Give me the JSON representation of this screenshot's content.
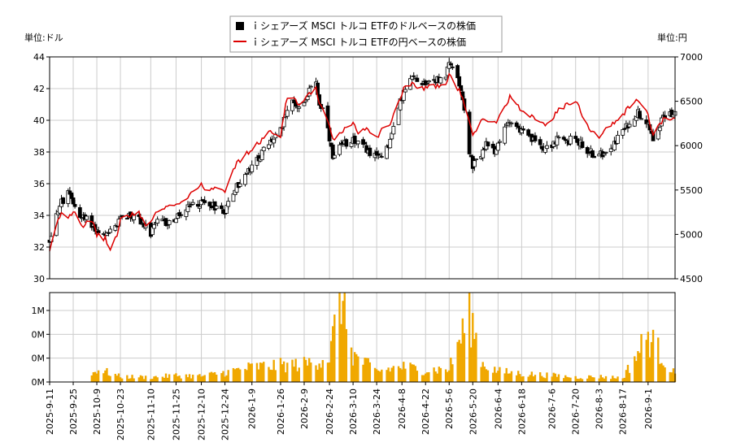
{
  "chart_data": [
    {
      "type": "candlestick",
      "legend_placement": "top-center",
      "left_unit": "単位:ドル",
      "right_unit": "単位:円",
      "legend": [
        {
          "label": "ｉシェアーズ MSCI トルコ ETFのドルベースの株価",
          "color": "#000000"
        },
        {
          "label": "ｉシェアーズ MSCI トルコ ETFの円ベースの株価",
          "color": "#dd0000"
        }
      ],
      "grid": true,
      "ylim_left": [
        30,
        44
      ],
      "ylim_right": [
        4500,
        7000
      ],
      "yticks_left": [
        30,
        32,
        34,
        36,
        38,
        40,
        42,
        44
      ],
      "yticks_right": [
        4500,
        5000,
        5500,
        6000,
        6500,
        7000
      ],
      "x_start": "2025-09-11",
      "x_end": "2026-09-17",
      "x_ticks": [
        "2025-9-11",
        "2025-9-25",
        "2025-10-9",
        "2025-10-23",
        "2025-11-10",
        "2025-11-25",
        "2025-12-10",
        "2025-12-24",
        "2026-1-9",
        "2026-1-26",
        "2026-2-9",
        "2026-2-24",
        "2026-3-10",
        "2026-3-24",
        "2026-4-8",
        "2026-4-22",
        "2026-5-6",
        "2026-5-20",
        "2026-6-4",
        "2026-6-18",
        "2026-7-6",
        "2026-7-20",
        "2026-8-3",
        "2026-8-17",
        "2026-9-1"
      ],
      "price_anchors": [
        [
          "2025-9-11",
          32.4
        ],
        [
          "2025-9-15",
          34.2
        ],
        [
          "2025-9-18",
          34.8
        ],
        [
          "2025-9-22",
          35.3
        ],
        [
          "2025-9-26",
          34.6
        ],
        [
          "2025-9-30",
          33.9
        ],
        [
          "2025-10-6",
          33.5
        ],
        [
          "2025-10-9",
          33.0
        ],
        [
          "2025-10-14",
          32.6
        ],
        [
          "2025-10-17",
          32.9
        ],
        [
          "2025-10-22",
          33.5
        ],
        [
          "2025-10-23",
          34.0
        ],
        [
          "2025-10-28",
          34.0
        ],
        [
          "2025-11-3",
          33.8
        ],
        [
          "2025-11-7",
          33.2
        ],
        [
          "2025-11-10",
          32.8
        ],
        [
          "2025-11-14",
          33.6
        ],
        [
          "2025-11-20",
          33.5
        ],
        [
          "2025-11-25",
          33.8
        ],
        [
          "2025-12-1",
          34.3
        ],
        [
          "2025-12-5",
          34.7
        ],
        [
          "2025-12-10",
          34.8
        ],
        [
          "2025-12-15",
          34.8
        ],
        [
          "2025-12-19",
          34.5
        ],
        [
          "2025-12-24",
          34.3
        ],
        [
          "2025-12-29",
          35.5
        ],
        [
          "2026-1-5",
          36.5
        ],
        [
          "2026-1-9",
          37.0
        ],
        [
          "2026-1-14",
          37.8
        ],
        [
          "2026-1-19",
          38.5
        ],
        [
          "2026-1-26",
          39.3
        ],
        [
          "2026-1-29",
          40.6
        ],
        [
          "2026-2-3",
          41.2
        ],
        [
          "2026-2-6",
          40.8
        ],
        [
          "2026-2-9",
          41.3
        ],
        [
          "2026-2-13",
          42.0
        ],
        [
          "2026-2-16",
          42.5
        ],
        [
          "2026-2-18",
          41.0
        ],
        [
          "2026-2-21",
          40.5
        ],
        [
          "2026-2-24",
          38.7
        ],
        [
          "2026-2-26",
          37.5
        ],
        [
          "2026-3-2",
          38.2
        ],
        [
          "2026-3-6",
          38.6
        ],
        [
          "2026-3-10",
          38.9
        ],
        [
          "2026-3-13",
          38.5
        ],
        [
          "2026-3-17",
          38.3
        ],
        [
          "2026-3-21",
          37.8
        ],
        [
          "2026-3-24",
          37.6
        ],
        [
          "2026-3-28",
          38.0
        ],
        [
          "2026-4-1",
          38.7
        ],
        [
          "2026-4-4",
          40.0
        ],
        [
          "2026-4-8",
          41.5
        ],
        [
          "2026-4-11",
          42.2
        ],
        [
          "2026-4-15",
          42.7
        ],
        [
          "2026-4-19",
          42.5
        ],
        [
          "2026-4-22",
          42.4
        ],
        [
          "2026-4-26",
          42.6
        ],
        [
          "2026-4-30",
          42.5
        ],
        [
          "2026-5-4",
          42.9
        ],
        [
          "2026-5-6",
          43.5
        ],
        [
          "2026-5-8",
          43.3
        ],
        [
          "2026-5-11",
          42.8
        ],
        [
          "2026-5-14",
          41.5
        ],
        [
          "2026-5-16",
          40.0
        ],
        [
          "2026-5-18",
          38.0
        ],
        [
          "2026-5-20",
          37.0
        ],
        [
          "2026-5-24",
          37.8
        ],
        [
          "2026-5-28",
          38.4
        ],
        [
          "2026-6-1",
          38.0
        ],
        [
          "2026-6-4",
          38.3
        ],
        [
          "2026-6-8",
          39.5
        ],
        [
          "2026-6-11",
          40.1
        ],
        [
          "2026-6-15",
          39.6
        ],
        [
          "2026-6-18",
          39.3
        ],
        [
          "2026-6-23",
          38.8
        ],
        [
          "2026-6-27",
          38.6
        ],
        [
          "2026-7-2",
          38.3
        ],
        [
          "2026-7-6",
          38.5
        ],
        [
          "2026-7-10",
          38.8
        ],
        [
          "2026-7-14",
          38.6
        ],
        [
          "2026-7-20",
          38.9
        ],
        [
          "2026-7-24",
          38.4
        ],
        [
          "2026-7-28",
          38.0
        ],
        [
          "2026-8-3",
          37.7
        ],
        [
          "2026-8-7",
          38.2
        ],
        [
          "2026-8-12",
          38.6
        ],
        [
          "2026-8-17",
          39.3
        ],
        [
          "2026-8-21",
          39.8
        ],
        [
          "2026-8-25",
          40.5
        ],
        [
          "2026-8-29",
          40.3
        ],
        [
          "2026-9-1",
          39.9
        ],
        [
          "2026-9-4",
          38.9
        ],
        [
          "2026-9-8",
          39.8
        ],
        [
          "2026-9-11",
          40.3
        ],
        [
          "2026-9-17",
          40.5
        ]
      ],
      "yen_anchors": [
        [
          "2025-9-11",
          4800
        ],
        [
          "2025-9-15",
          5100
        ],
        [
          "2025-9-18",
          5250
        ],
        [
          "2025-9-22",
          5200
        ],
        [
          "2025-9-26",
          5280
        ],
        [
          "2025-9-30",
          5100
        ],
        [
          "2025-10-6",
          5150
        ],
        [
          "2025-10-9",
          5000
        ],
        [
          "2025-10-14",
          4950
        ],
        [
          "2025-10-17",
          4820
        ],
        [
          "2025-10-22",
          5050
        ],
        [
          "2025-10-23",
          5200
        ],
        [
          "2025-10-28",
          5200
        ],
        [
          "2025-11-3",
          5250
        ],
        [
          "2025-11-7",
          5100
        ],
        [
          "2025-11-10",
          5150
        ],
        [
          "2025-11-14",
          5250
        ],
        [
          "2025-11-20",
          5300
        ],
        [
          "2025-11-25",
          5350
        ],
        [
          "2025-12-1",
          5400
        ],
        [
          "2025-12-5",
          5500
        ],
        [
          "2025-12-10",
          5550
        ],
        [
          "2025-12-15",
          5500
        ],
        [
          "2025-12-19",
          5550
        ],
        [
          "2025-12-24",
          5500
        ],
        [
          "2025-12-29",
          5750
        ],
        [
          "2026-1-5",
          5900
        ],
        [
          "2026-1-9",
          5950
        ],
        [
          "2026-1-14",
          6050
        ],
        [
          "2026-1-19",
          6150
        ],
        [
          "2026-1-26",
          6100
        ],
        [
          "2026-1-29",
          6500
        ],
        [
          "2026-2-3",
          6550
        ],
        [
          "2026-2-6",
          6450
        ],
        [
          "2026-2-9",
          6500
        ],
        [
          "2026-2-13",
          6600
        ],
        [
          "2026-2-16",
          6650
        ],
        [
          "2026-2-18",
          6450
        ],
        [
          "2026-2-21",
          6400
        ],
        [
          "2026-2-24",
          6200
        ],
        [
          "2026-2-26",
          6050
        ],
        [
          "2026-3-2",
          6150
        ],
        [
          "2026-3-6",
          6200
        ],
        [
          "2026-3-10",
          6250
        ],
        [
          "2026-3-13",
          6150
        ],
        [
          "2026-3-17",
          6200
        ],
        [
          "2026-3-21",
          6150
        ],
        [
          "2026-3-24",
          6100
        ],
        [
          "2026-3-28",
          6200
        ],
        [
          "2026-4-1",
          6250
        ],
        [
          "2026-4-4",
          6400
        ],
        [
          "2026-4-8",
          6600
        ],
        [
          "2026-4-11",
          6700
        ],
        [
          "2026-4-15",
          6700
        ],
        [
          "2026-4-19",
          6650
        ],
        [
          "2026-4-22",
          6650
        ],
        [
          "2026-4-26",
          6700
        ],
        [
          "2026-4-30",
          6650
        ],
        [
          "2026-5-4",
          6700
        ],
        [
          "2026-5-6",
          6800
        ],
        [
          "2026-5-8",
          6750
        ],
        [
          "2026-5-11",
          6650
        ],
        [
          "2026-5-14",
          6550
        ],
        [
          "2026-5-16",
          6400
        ],
        [
          "2026-5-18",
          6250
        ],
        [
          "2026-5-20",
          6100
        ],
        [
          "2026-5-24",
          6250
        ],
        [
          "2026-5-28",
          6300
        ],
        [
          "2026-6-1",
          6250
        ],
        [
          "2026-6-4",
          6300
        ],
        [
          "2026-6-8",
          6450
        ],
        [
          "2026-6-11",
          6550
        ],
        [
          "2026-6-15",
          6450
        ],
        [
          "2026-6-18",
          6400
        ],
        [
          "2026-6-23",
          6350
        ],
        [
          "2026-6-27",
          6300
        ],
        [
          "2026-7-2",
          6250
        ],
        [
          "2026-7-6",
          6300
        ],
        [
          "2026-7-10",
          6400
        ],
        [
          "2026-7-14",
          6450
        ],
        [
          "2026-7-20",
          6500
        ],
        [
          "2026-7-24",
          6350
        ],
        [
          "2026-7-28",
          6200
        ],
        [
          "2026-8-3",
          6100
        ],
        [
          "2026-8-7",
          6200
        ],
        [
          "2026-8-12",
          6250
        ],
        [
          "2026-8-17",
          6350
        ],
        [
          "2026-8-21",
          6450
        ],
        [
          "2026-8-25",
          6500
        ],
        [
          "2026-8-29",
          6450
        ],
        [
          "2026-9-1",
          6350
        ],
        [
          "2026-9-4",
          6100
        ],
        [
          "2026-9-8",
          6250
        ],
        [
          "2026-9-11",
          6300
        ],
        [
          "2026-9-17",
          6300
        ]
      ]
    },
    {
      "type": "bar",
      "ylim": [
        0,
        1500000
      ],
      "yticks": [
        0,
        400000,
        800000,
        1200000
      ],
      "ytick_labels": [
        "0M",
        "0M",
        "0M",
        "1M"
      ],
      "grid": true,
      "volume_anchors": [
        [
          "2025-9-11",
          0
        ],
        [
          "2025-10-3",
          0
        ],
        [
          "2025-10-6",
          120000
        ],
        [
          "2025-10-9",
          220000
        ],
        [
          "2025-10-23",
          90000
        ],
        [
          "2025-11-10",
          80000
        ],
        [
          "2025-11-25",
          110000
        ],
        [
          "2025-12-10",
          100000
        ],
        [
          "2025-12-24",
          160000
        ],
        [
          "2026-1-9",
          250000
        ],
        [
          "2026-1-26",
          280000
        ],
        [
          "2026-2-9",
          300000
        ],
        [
          "2026-2-24",
          420000
        ],
        [
          "2026-3-3",
          1500000
        ],
        [
          "2026-3-10",
          450000
        ],
        [
          "2026-3-24",
          180000
        ],
        [
          "2026-4-8",
          260000
        ],
        [
          "2026-4-22",
          200000
        ],
        [
          "2026-5-6",
          220000
        ],
        [
          "2026-5-18",
          1150000
        ],
        [
          "2026-5-26",
          300000
        ],
        [
          "2026-6-4",
          180000
        ],
        [
          "2026-6-18",
          140000
        ],
        [
          "2026-7-6",
          110000
        ],
        [
          "2026-7-20",
          80000
        ],
        [
          "2026-8-3",
          90000
        ],
        [
          "2026-8-17",
          70000
        ],
        [
          "2026-9-1",
          780000
        ],
        [
          "2026-9-17",
          120000
        ]
      ]
    }
  ]
}
